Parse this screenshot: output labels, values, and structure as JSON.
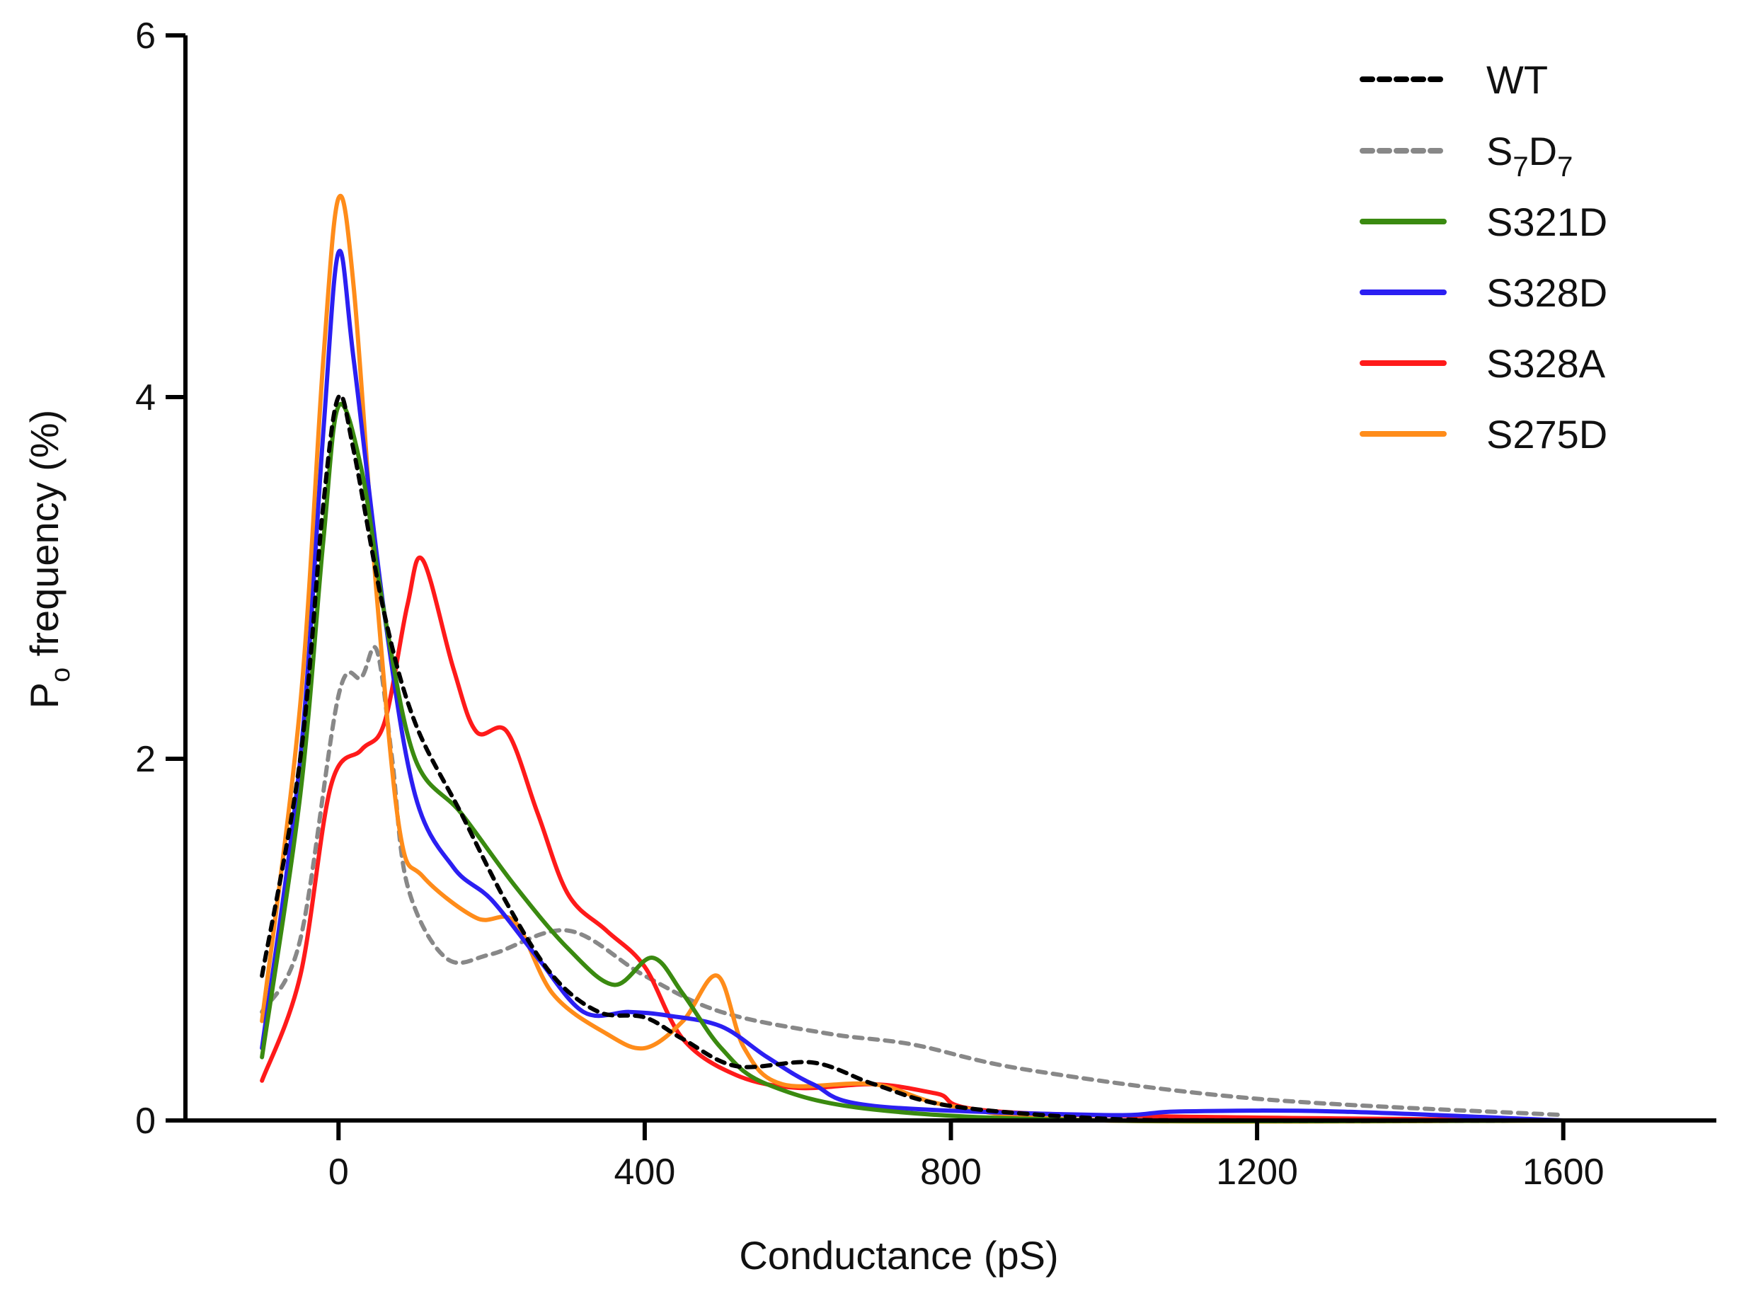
{
  "chart_data": {
    "type": "line",
    "title": "",
    "xlabel": "Conductance (pS)",
    "ylabel_main": "P",
    "ylabel_sub": "o",
    "ylabel_rest": " frequency (%)",
    "xlim": [
      -200,
      1800
    ],
    "ylim": [
      0,
      6
    ],
    "x_ticks": [
      0,
      400,
      800,
      1200,
      1600
    ],
    "y_ticks": [
      0,
      2,
      4,
      6
    ],
    "grid": false,
    "legend_position": "top-right",
    "series": [
      {
        "name": "WT",
        "display_text": "WT",
        "color": "#000000",
        "style": "dotted",
        "points": [
          [
            -100,
            0.8
          ],
          [
            -50,
            2.0
          ],
          [
            -20,
            3.4
          ],
          [
            0,
            4.0
          ],
          [
            20,
            3.7
          ],
          [
            60,
            2.8
          ],
          [
            100,
            2.2
          ],
          [
            160,
            1.7
          ],
          [
            220,
            1.2
          ],
          [
            280,
            0.8
          ],
          [
            340,
            0.6
          ],
          [
            400,
            0.57
          ],
          [
            450,
            0.45
          ],
          [
            520,
            0.3
          ],
          [
            620,
            0.32
          ],
          [
            700,
            0.2
          ],
          [
            800,
            0.08
          ],
          [
            1000,
            0.01
          ],
          [
            1200,
            0.0
          ],
          [
            1600,
            0.0
          ]
        ]
      },
      {
        "name": "S7D7",
        "base": "S",
        "sub1": "7",
        "mid": "D",
        "sub2": "7",
        "color": "#888888",
        "style": "dotted",
        "points": [
          [
            -100,
            0.6
          ],
          [
            -50,
            1.0
          ],
          [
            0,
            2.35
          ],
          [
            30,
            2.45
          ],
          [
            50,
            2.6
          ],
          [
            70,
            2.0
          ],
          [
            90,
            1.3
          ],
          [
            140,
            0.9
          ],
          [
            200,
            0.92
          ],
          [
            300,
            1.05
          ],
          [
            400,
            0.8
          ],
          [
            500,
            0.6
          ],
          [
            640,
            0.48
          ],
          [
            750,
            0.42
          ],
          [
            900,
            0.28
          ],
          [
            1200,
            0.12
          ],
          [
            1600,
            0.03
          ]
        ]
      },
      {
        "name": "S321D",
        "display_text": "S321D",
        "color": "#3a8a10",
        "style": "solid",
        "points": [
          [
            -100,
            0.35
          ],
          [
            -50,
            1.8
          ],
          [
            -20,
            3.2
          ],
          [
            0,
            3.95
          ],
          [
            30,
            3.6
          ],
          [
            60,
            2.8
          ],
          [
            100,
            2.0
          ],
          [
            160,
            1.7
          ],
          [
            230,
            1.3
          ],
          [
            300,
            0.95
          ],
          [
            360,
            0.75
          ],
          [
            410,
            0.9
          ],
          [
            450,
            0.7
          ],
          [
            500,
            0.4
          ],
          [
            560,
            0.2
          ],
          [
            700,
            0.06
          ],
          [
            1000,
            0.0
          ],
          [
            1600,
            0.0
          ]
        ]
      },
      {
        "name": "S328D",
        "display_text": "S328D",
        "color": "#2b1ff2",
        "style": "solid",
        "points": [
          [
            -100,
            0.4
          ],
          [
            -50,
            2.0
          ],
          [
            -20,
            3.8
          ],
          [
            0,
            4.8
          ],
          [
            20,
            4.2
          ],
          [
            60,
            2.8
          ],
          [
            100,
            1.8
          ],
          [
            150,
            1.4
          ],
          [
            200,
            1.22
          ],
          [
            260,
            0.9
          ],
          [
            320,
            0.6
          ],
          [
            380,
            0.6
          ],
          [
            430,
            0.58
          ],
          [
            500,
            0.52
          ],
          [
            560,
            0.35
          ],
          [
            620,
            0.2
          ],
          [
            700,
            0.08
          ],
          [
            1000,
            0.03
          ],
          [
            1100,
            0.05
          ],
          [
            1300,
            0.05
          ],
          [
            1600,
            0.0
          ]
        ]
      },
      {
        "name": "S328A",
        "display_text": "S328A",
        "color": "#ff1a1a",
        "style": "solid",
        "points": [
          [
            -100,
            0.22
          ],
          [
            -50,
            0.8
          ],
          [
            -10,
            1.85
          ],
          [
            30,
            2.05
          ],
          [
            60,
            2.2
          ],
          [
            90,
            2.85
          ],
          [
            110,
            3.1
          ],
          [
            150,
            2.5
          ],
          [
            180,
            2.15
          ],
          [
            220,
            2.15
          ],
          [
            260,
            1.7
          ],
          [
            300,
            1.25
          ],
          [
            350,
            1.05
          ],
          [
            400,
            0.85
          ],
          [
            450,
            0.45
          ],
          [
            520,
            0.25
          ],
          [
            600,
            0.18
          ],
          [
            700,
            0.2
          ],
          [
            780,
            0.15
          ],
          [
            900,
            0.04
          ],
          [
            1600,
            0.0
          ]
        ]
      },
      {
        "name": "S275D",
        "display_text": "S275D",
        "color": "#ff8c1a",
        "style": "solid",
        "points": [
          [
            -100,
            0.55
          ],
          [
            -50,
            2.3
          ],
          [
            -20,
            4.2
          ],
          [
            0,
            5.1
          ],
          [
            20,
            4.6
          ],
          [
            50,
            2.9
          ],
          [
            80,
            1.6
          ],
          [
            110,
            1.35
          ],
          [
            180,
            1.12
          ],
          [
            230,
            1.1
          ],
          [
            280,
            0.7
          ],
          [
            350,
            0.48
          ],
          [
            400,
            0.4
          ],
          [
            450,
            0.55
          ],
          [
            495,
            0.8
          ],
          [
            530,
            0.4
          ],
          [
            580,
            0.2
          ],
          [
            700,
            0.2
          ],
          [
            800,
            0.08
          ],
          [
            1000,
            0.0
          ],
          [
            1600,
            0.0
          ]
        ]
      }
    ]
  }
}
